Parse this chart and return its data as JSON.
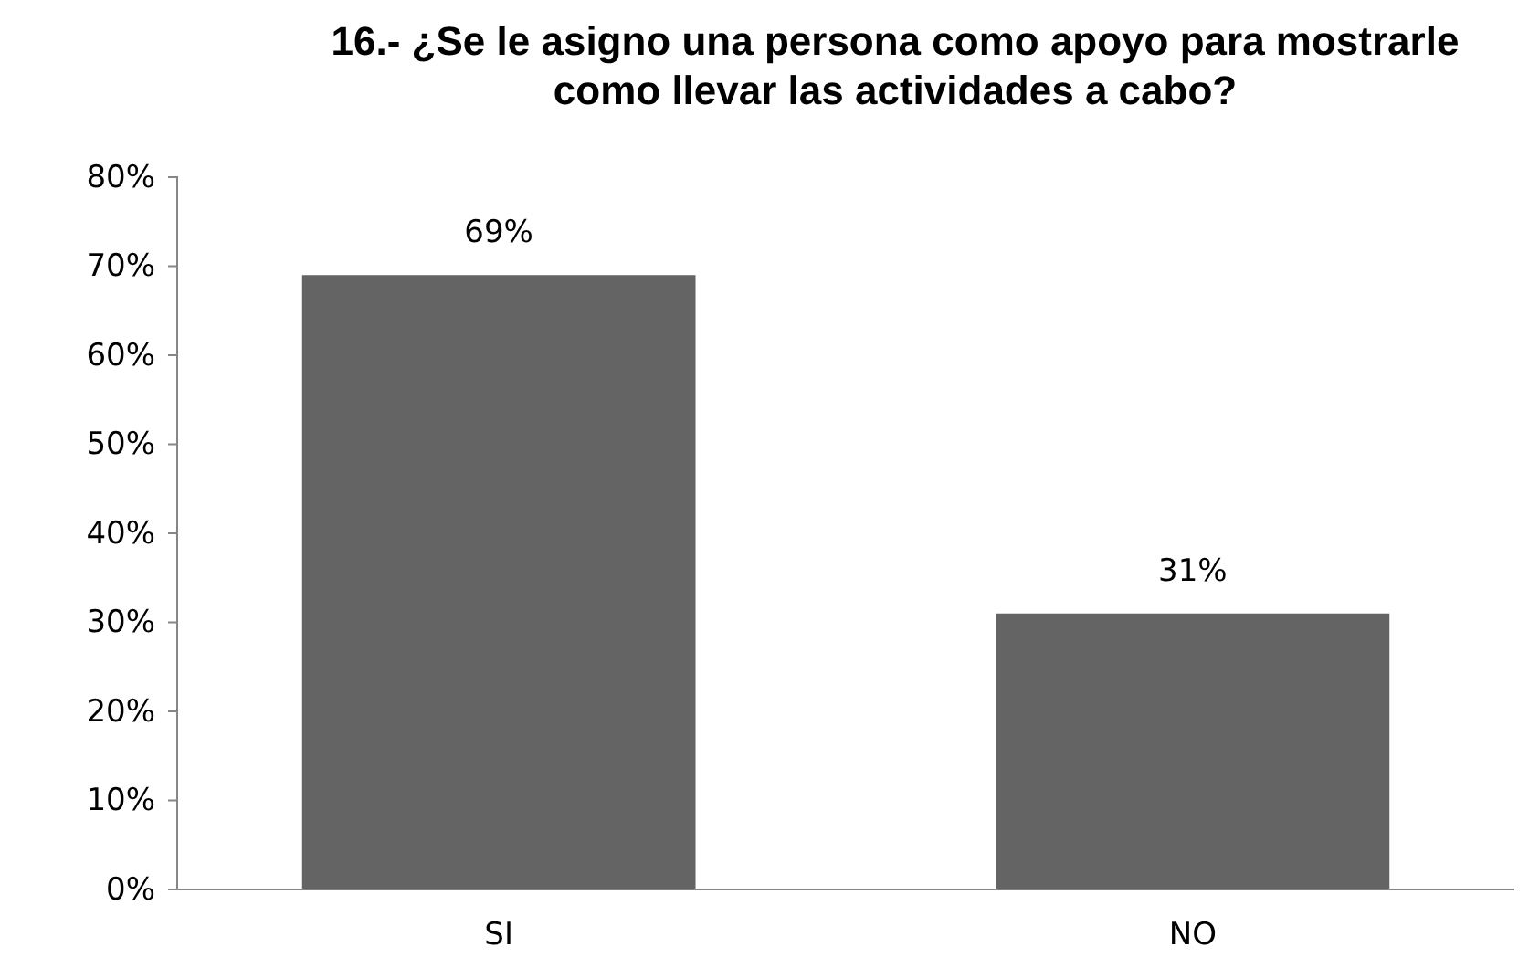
{
  "chart_data": {
    "type": "bar",
    "title": "16.- ¿Se le asigno una persona como apoyo para mostrarle como llevar las actividades a cabo?",
    "categories": [
      "SI",
      "NO"
    ],
    "values": [
      69,
      31
    ],
    "value_labels": [
      "69%",
      "31%"
    ],
    "color": "#646464",
    "ylim": [
      0,
      80
    ],
    "yticks": [
      {
        "value": 0,
        "label": "0%"
      },
      {
        "value": 10,
        "label": "10%"
      },
      {
        "value": 20,
        "label": "20%"
      },
      {
        "value": 30,
        "label": "30%"
      },
      {
        "value": 40,
        "label": "40%"
      },
      {
        "value": 50,
        "label": "50%"
      },
      {
        "value": 60,
        "label": "60%"
      },
      {
        "value": 70,
        "label": "70%"
      },
      {
        "value": 80,
        "label": "80%"
      }
    ],
    "grid": false
  }
}
